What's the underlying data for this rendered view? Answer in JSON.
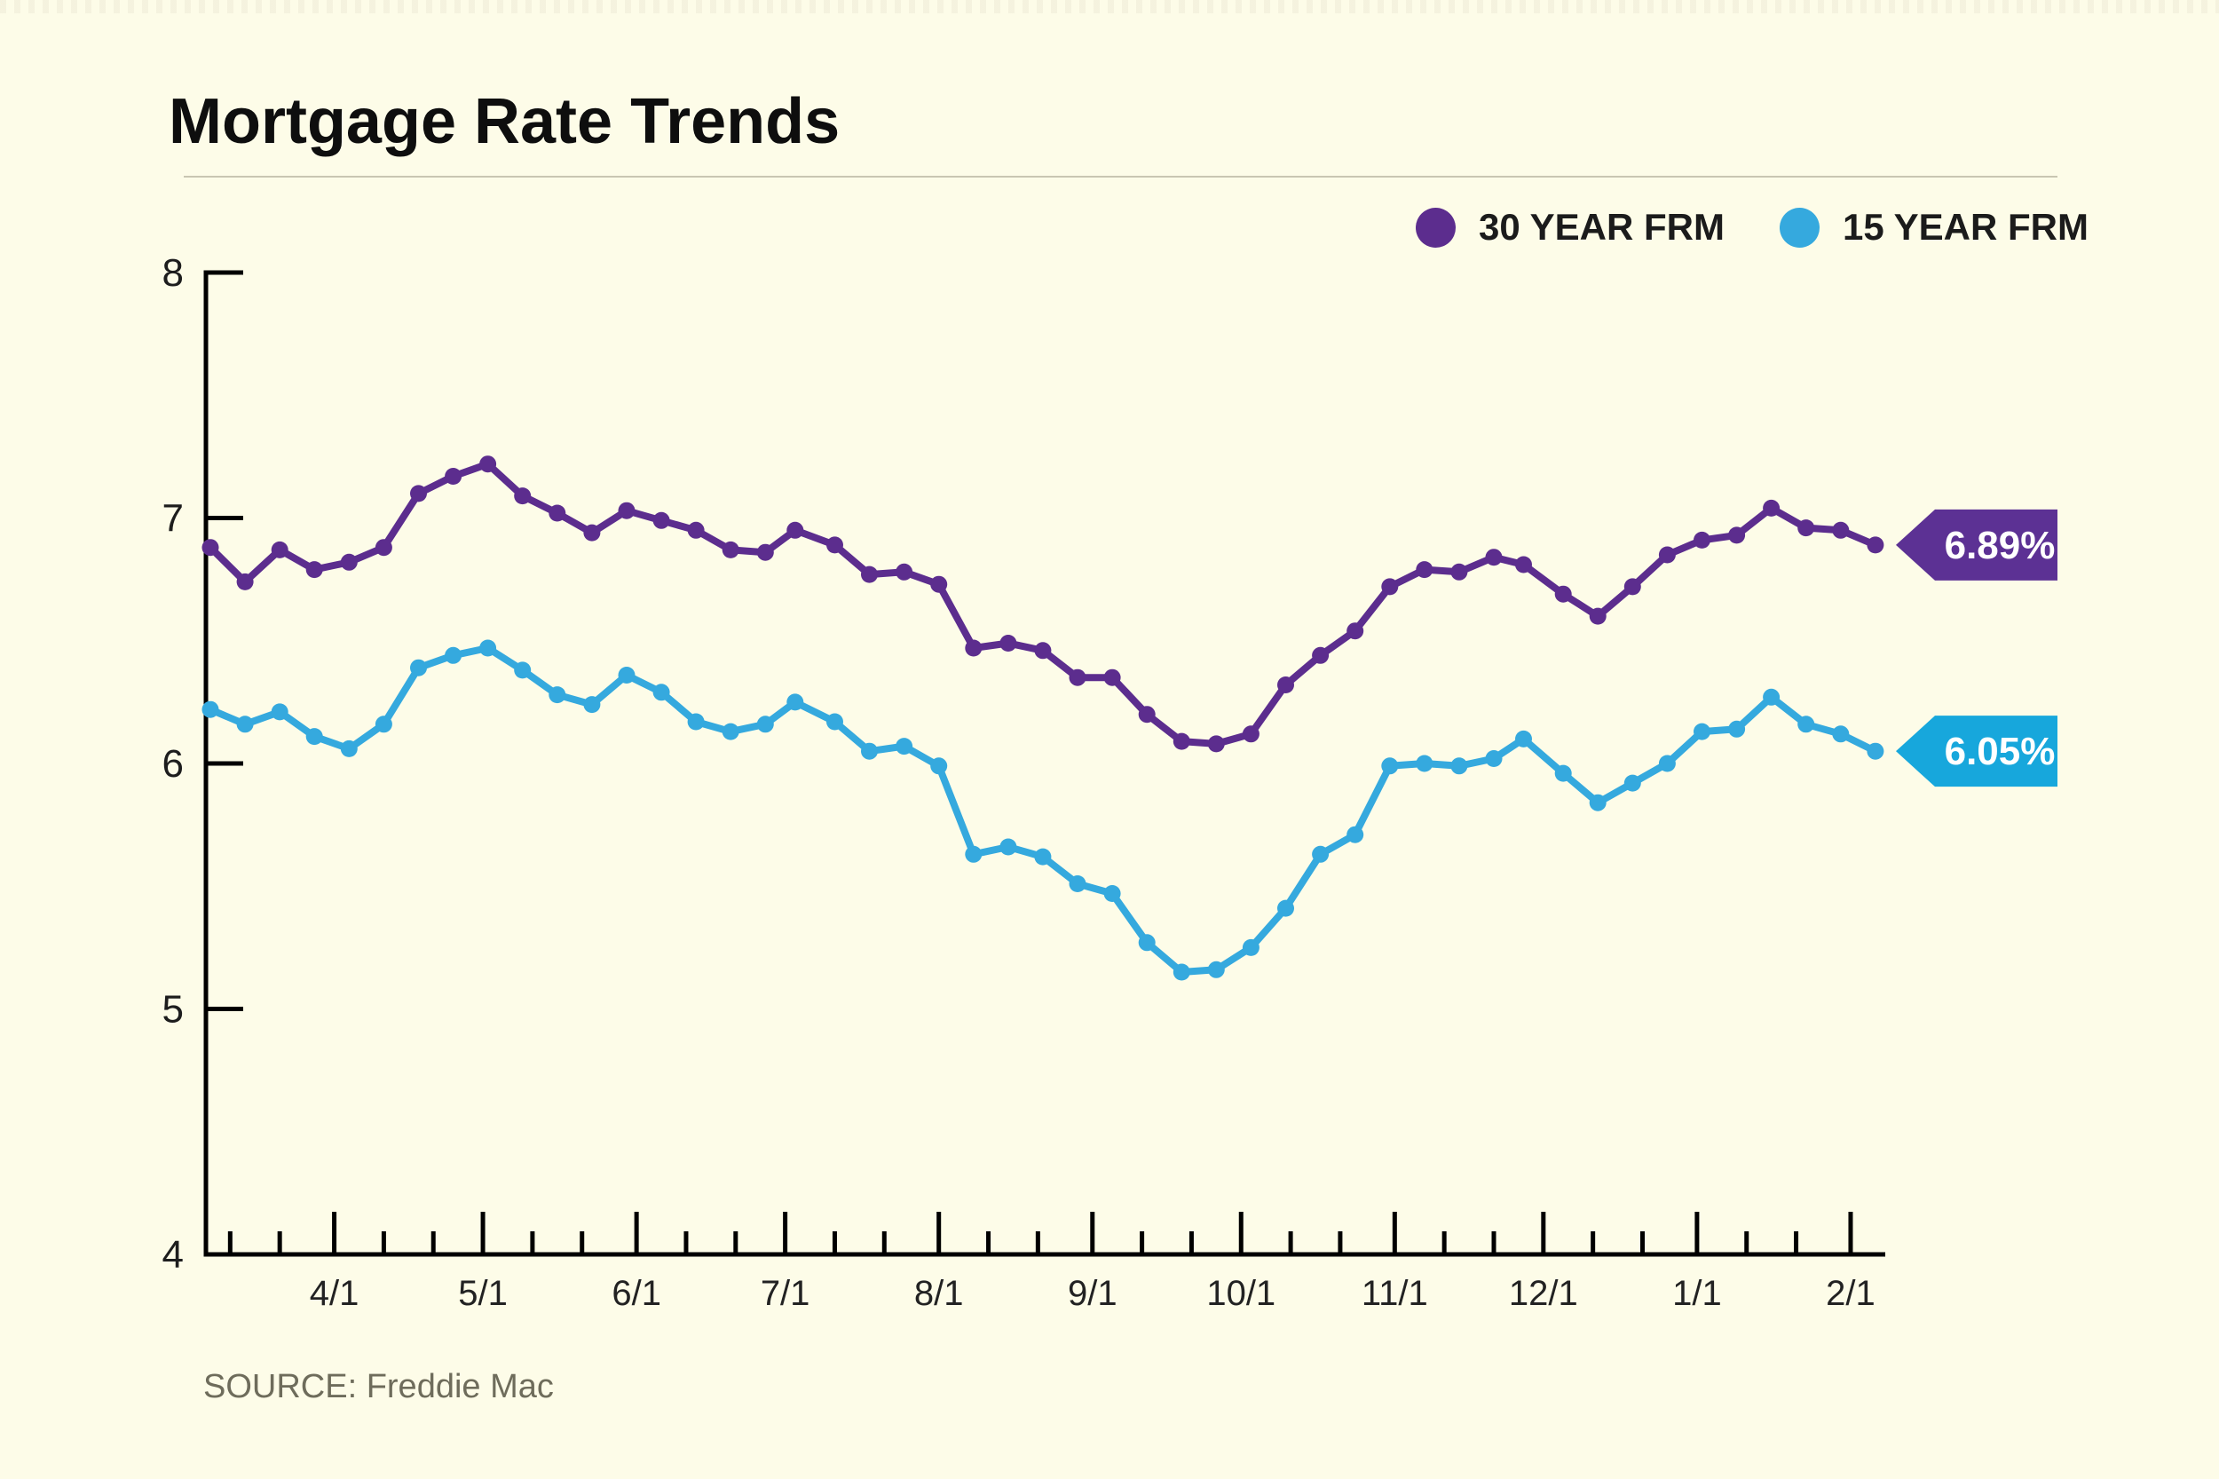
{
  "page": {
    "background": "#FDFCE8"
  },
  "header": {
    "title": "Mortgage Rate Trends"
  },
  "legend": [
    {
      "label": "30 YEAR FRM",
      "color": "#5C2D8E"
    },
    {
      "label": "15 YEAR FRM",
      "color": "#35A9DE"
    }
  ],
  "source": {
    "text": "SOURCE: Freddie Mac"
  },
  "chart_data": {
    "type": "line",
    "title": "Mortgage Rate Trends",
    "xlabel": "",
    "ylabel": "",
    "ylim": [
      4,
      8
    ],
    "grid": false,
    "legend_position": "top-right",
    "x_tick_labels": [
      "4/1",
      "5/1",
      "6/1",
      "7/1",
      "8/1",
      "9/1",
      "10/1",
      "11/1",
      "12/1",
      "1/1",
      "2/1"
    ],
    "y_tick_labels": [
      8,
      7,
      6,
      5,
      4
    ],
    "x": [
      "3/7",
      "3/14",
      "3/21",
      "3/28",
      "4/4",
      "4/11",
      "4/18",
      "4/25",
      "5/2",
      "5/9",
      "5/16",
      "5/23",
      "5/30",
      "6/6",
      "6/13",
      "6/20",
      "6/27",
      "7/3",
      "7/11",
      "7/18",
      "7/25",
      "8/1",
      "8/8",
      "8/15",
      "8/22",
      "8/29",
      "9/5",
      "9/12",
      "9/19",
      "9/26",
      "10/3",
      "10/10",
      "10/17",
      "10/24",
      "10/31",
      "11/7",
      "11/14",
      "11/21",
      "11/27",
      "12/5",
      "12/12",
      "12/19",
      "12/26",
      "1/2",
      "1/9",
      "1/16",
      "1/23",
      "1/30",
      "2/6"
    ],
    "series": [
      {
        "name": "30 YEAR FRM",
        "color": "#5C2D8E",
        "tag_color": "#5C3194",
        "end_label": "6.89%",
        "values": [
          6.88,
          6.74,
          6.87,
          6.79,
          6.82,
          6.88,
          7.1,
          7.17,
          7.22,
          7.09,
          7.02,
          6.94,
          7.03,
          6.99,
          6.95,
          6.87,
          6.86,
          6.95,
          6.89,
          6.77,
          6.78,
          6.73,
          6.47,
          6.49,
          6.46,
          6.35,
          6.35,
          6.2,
          6.09,
          6.08,
          6.12,
          6.32,
          6.44,
          6.54,
          6.72,
          6.79,
          6.78,
          6.84,
          6.81,
          6.69,
          6.6,
          6.72,
          6.85,
          6.91,
          6.93,
          7.04,
          6.96,
          6.95,
          6.89
        ]
      },
      {
        "name": "15 YEAR FRM",
        "color": "#35A9DE",
        "tag_color": "#17A7DC",
        "end_label": "6.05%",
        "values": [
          6.22,
          6.16,
          6.21,
          6.11,
          6.06,
          6.16,
          6.39,
          6.44,
          6.47,
          6.38,
          6.28,
          6.24,
          6.36,
          6.29,
          6.17,
          6.13,
          6.16,
          6.25,
          6.17,
          6.05,
          6.07,
          5.99,
          5.63,
          5.66,
          5.62,
          5.51,
          5.47,
          5.27,
          5.15,
          5.16,
          5.25,
          5.41,
          5.63,
          5.71,
          5.99,
          6.0,
          5.99,
          6.02,
          6.1,
          5.96,
          5.84,
          5.92,
          6.0,
          6.13,
          6.14,
          6.27,
          6.16,
          6.12,
          6.05
        ]
      }
    ]
  }
}
